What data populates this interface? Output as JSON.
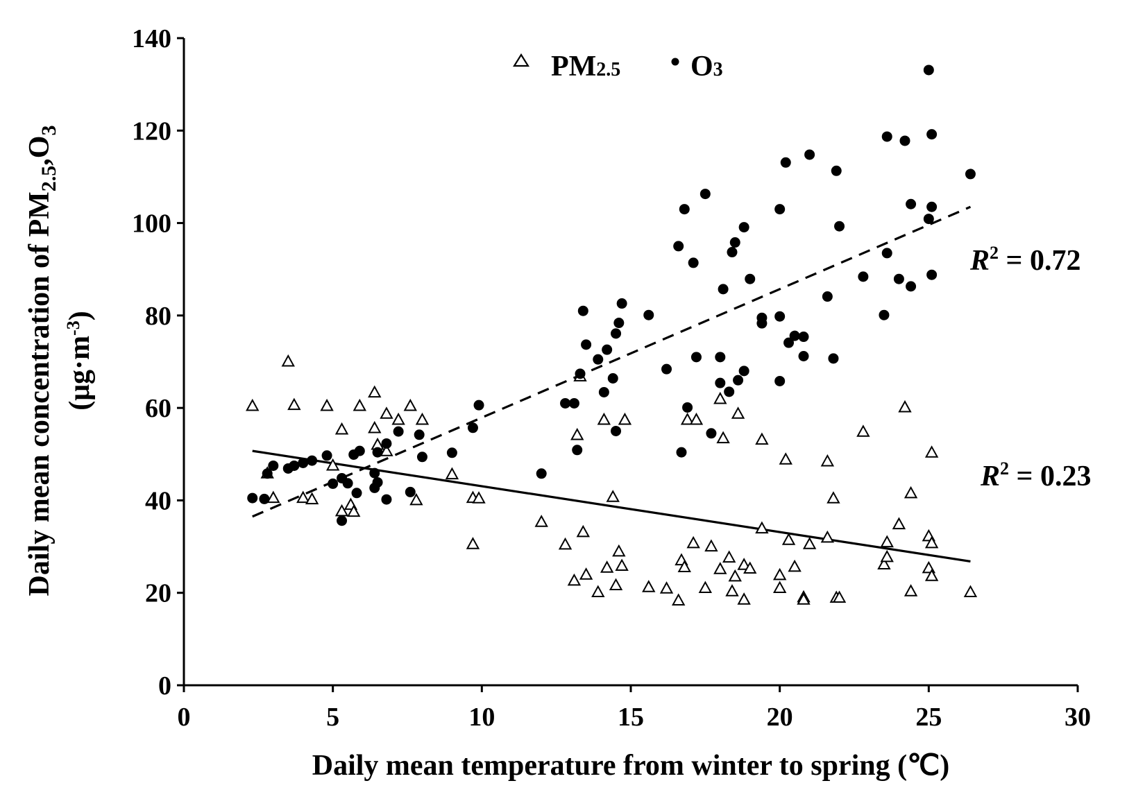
{
  "chart_data": {
    "type": "scatter",
    "xlabel": "Daily mean temperature from winter to spring (℃)",
    "ylabel": "Daily mean concentration of PM2.5,O3 (μg·m-3)",
    "ylabel_parts": {
      "main": "Daily mean concentration of PM",
      "sub1": "2.5",
      "mid": ",O",
      "sub2": "3",
      "unit_open": "(μg·m",
      "unit_sup": "-3",
      "unit_close": ")"
    },
    "xlim": [
      0,
      30
    ],
    "ylim": [
      0,
      140
    ],
    "xticks": [
      0,
      5,
      10,
      15,
      20,
      25,
      30
    ],
    "yticks": [
      0,
      20,
      40,
      60,
      80,
      100,
      120,
      140
    ],
    "legend_position": "top-center",
    "series": [
      {
        "name": "PM2.5",
        "legend_main": "PM",
        "legend_sub": "2.5",
        "marker": "triangle-open",
        "color": "#000000",
        "trend": {
          "style": "solid",
          "x": [
            2.3,
            26.4
          ],
          "y": [
            50.7,
            26.8
          ]
        },
        "r2_label": {
          "prefix": "R",
          "sup": "2",
          "rest": " = 0.23"
        },
        "points": [
          [
            2.3,
            60.4
          ],
          [
            2.8,
            45.8
          ],
          [
            3.0,
            40.5
          ],
          [
            3.5,
            70.0
          ],
          [
            3.7,
            60.6
          ],
          [
            4.0,
            40.5
          ],
          [
            4.3,
            40.2
          ],
          [
            4.8,
            60.4
          ],
          [
            5.0,
            47.5
          ],
          [
            5.3,
            55.3
          ],
          [
            5.3,
            37.6
          ],
          [
            5.6,
            39.0
          ],
          [
            5.7,
            37.5
          ],
          [
            5.9,
            60.4
          ],
          [
            6.4,
            63.3
          ],
          [
            6.4,
            55.6
          ],
          [
            6.5,
            52.0
          ],
          [
            6.8,
            50.6
          ],
          [
            6.8,
            58.7
          ],
          [
            7.2,
            57.4
          ],
          [
            7.6,
            60.4
          ],
          [
            7.8,
            40.0
          ],
          [
            8.0,
            57.4
          ],
          [
            9.0,
            45.6
          ],
          [
            9.7,
            30.5
          ],
          [
            9.7,
            40.5
          ],
          [
            9.9,
            40.4
          ],
          [
            12.0,
            35.3
          ],
          [
            12.8,
            30.4
          ],
          [
            13.1,
            22.6
          ],
          [
            13.2,
            54.1
          ],
          [
            13.3,
            66.8
          ],
          [
            13.4,
            33.1
          ],
          [
            13.5,
            23.9
          ],
          [
            13.9,
            20.1
          ],
          [
            14.1,
            57.4
          ],
          [
            14.2,
            25.4
          ],
          [
            14.4,
            40.7
          ],
          [
            14.5,
            21.6
          ],
          [
            14.6,
            28.9
          ],
          [
            14.7,
            25.8
          ],
          [
            14.8,
            57.4
          ],
          [
            15.6,
            21.2
          ],
          [
            16.2,
            20.9
          ],
          [
            16.6,
            18.3
          ],
          [
            16.7,
            27.0
          ],
          [
            16.8,
            25.5
          ],
          [
            16.9,
            57.4
          ],
          [
            17.1,
            30.7
          ],
          [
            17.2,
            57.4
          ],
          [
            17.5,
            21.0
          ],
          [
            17.7,
            30.0
          ],
          [
            18.0,
            25.1
          ],
          [
            18.0,
            61.9
          ],
          [
            18.1,
            53.4
          ],
          [
            18.3,
            27.6
          ],
          [
            18.4,
            20.3
          ],
          [
            18.5,
            23.5
          ],
          [
            18.6,
            58.7
          ],
          [
            18.8,
            26.0
          ],
          [
            18.8,
            18.5
          ],
          [
            19.0,
            25.2
          ],
          [
            19.4,
            53.1
          ],
          [
            19.4,
            33.9
          ],
          [
            20.0,
            23.8
          ],
          [
            20.0,
            21.0
          ],
          [
            20.2,
            48.8
          ],
          [
            20.3,
            31.4
          ],
          [
            20.5,
            25.6
          ],
          [
            20.8,
            19.0
          ],
          [
            20.8,
            18.5
          ],
          [
            21.0,
            30.5
          ],
          [
            21.6,
            31.9
          ],
          [
            21.6,
            48.4
          ],
          [
            21.8,
            40.4
          ],
          [
            21.9,
            18.9
          ],
          [
            22.0,
            18.9
          ],
          [
            22.8,
            54.8
          ],
          [
            23.5,
            26.1
          ],
          [
            23.6,
            30.9
          ],
          [
            23.6,
            27.7
          ],
          [
            24.0,
            34.8
          ],
          [
            24.2,
            60.1
          ],
          [
            24.4,
            41.5
          ],
          [
            24.4,
            20.3
          ],
          [
            25.0,
            32.2
          ],
          [
            25.0,
            25.3
          ],
          [
            25.1,
            23.6
          ],
          [
            25.1,
            30.7
          ],
          [
            25.1,
            50.3
          ],
          [
            26.4,
            20.1
          ]
        ]
      },
      {
        "name": "O3",
        "legend_main": "O",
        "legend_sub": "3",
        "marker": "circle-filled",
        "color": "#000000",
        "trend": {
          "style": "dashed",
          "x": [
            2.3,
            26.4
          ],
          "y": [
            36.5,
            103.5
          ]
        },
        "r2_label": {
          "prefix": "R",
          "sup": "2",
          "rest": " = 0.72"
        },
        "points": [
          [
            2.3,
            40.5
          ],
          [
            2.7,
            40.3
          ],
          [
            2.8,
            45.8
          ],
          [
            3.0,
            47.5
          ],
          [
            3.5,
            46.9
          ],
          [
            3.7,
            47.5
          ],
          [
            4.0,
            48.1
          ],
          [
            4.3,
            48.6
          ],
          [
            4.8,
            49.7
          ],
          [
            5.0,
            43.6
          ],
          [
            5.3,
            44.8
          ],
          [
            5.3,
            35.6
          ],
          [
            5.5,
            43.7
          ],
          [
            5.7,
            49.9
          ],
          [
            5.8,
            41.6
          ],
          [
            5.9,
            50.7
          ],
          [
            6.4,
            45.9
          ],
          [
            6.4,
            42.7
          ],
          [
            6.5,
            50.4
          ],
          [
            6.5,
            43.9
          ],
          [
            6.8,
            40.2
          ],
          [
            6.8,
            52.3
          ],
          [
            7.2,
            54.9
          ],
          [
            7.6,
            41.8
          ],
          [
            7.9,
            54.2
          ],
          [
            8.0,
            49.4
          ],
          [
            9.0,
            50.3
          ],
          [
            9.7,
            55.7
          ],
          [
            9.9,
            60.6
          ],
          [
            12.0,
            45.8
          ],
          [
            12.8,
            61.0
          ],
          [
            13.1,
            61.0
          ],
          [
            13.2,
            50.9
          ],
          [
            13.3,
            67.4
          ],
          [
            13.4,
            81.0
          ],
          [
            13.5,
            73.7
          ],
          [
            13.9,
            70.5
          ],
          [
            14.1,
            63.4
          ],
          [
            14.2,
            72.6
          ],
          [
            14.4,
            66.4
          ],
          [
            14.5,
            76.1
          ],
          [
            14.5,
            55.0
          ],
          [
            14.6,
            78.4
          ],
          [
            14.7,
            82.6
          ],
          [
            15.6,
            80.1
          ],
          [
            16.2,
            68.4
          ],
          [
            16.6,
            95.0
          ],
          [
            16.7,
            50.4
          ],
          [
            16.8,
            103.0
          ],
          [
            16.9,
            60.1
          ],
          [
            17.1,
            91.4
          ],
          [
            17.2,
            71.0
          ],
          [
            17.5,
            106.3
          ],
          [
            17.7,
            54.5
          ],
          [
            18.0,
            71.0
          ],
          [
            18.0,
            65.4
          ],
          [
            18.1,
            85.7
          ],
          [
            18.3,
            63.5
          ],
          [
            18.4,
            93.7
          ],
          [
            18.5,
            95.8
          ],
          [
            18.6,
            66.0
          ],
          [
            18.8,
            99.1
          ],
          [
            18.8,
            68.0
          ],
          [
            19.0,
            87.9
          ],
          [
            19.4,
            79.5
          ],
          [
            19.4,
            78.3
          ],
          [
            20.0,
            103.0
          ],
          [
            20.0,
            79.8
          ],
          [
            20.0,
            65.8
          ],
          [
            20.2,
            113.1
          ],
          [
            20.3,
            74.1
          ],
          [
            20.5,
            75.6
          ],
          [
            20.8,
            75.4
          ],
          [
            20.8,
            71.2
          ],
          [
            21.0,
            114.8
          ],
          [
            21.6,
            84.1
          ],
          [
            21.8,
            70.7
          ],
          [
            21.9,
            111.3
          ],
          [
            22.0,
            99.3
          ],
          [
            22.8,
            88.4
          ],
          [
            23.5,
            80.1
          ],
          [
            23.6,
            118.7
          ],
          [
            23.6,
            93.5
          ],
          [
            24.0,
            87.9
          ],
          [
            24.2,
            117.8
          ],
          [
            24.4,
            104.1
          ],
          [
            24.4,
            86.3
          ],
          [
            25.0,
            133.1
          ],
          [
            25.0,
            100.9
          ],
          [
            25.1,
            119.2
          ],
          [
            25.1,
            103.5
          ],
          [
            25.1,
            88.8
          ],
          [
            26.4,
            110.6
          ]
        ]
      }
    ]
  }
}
